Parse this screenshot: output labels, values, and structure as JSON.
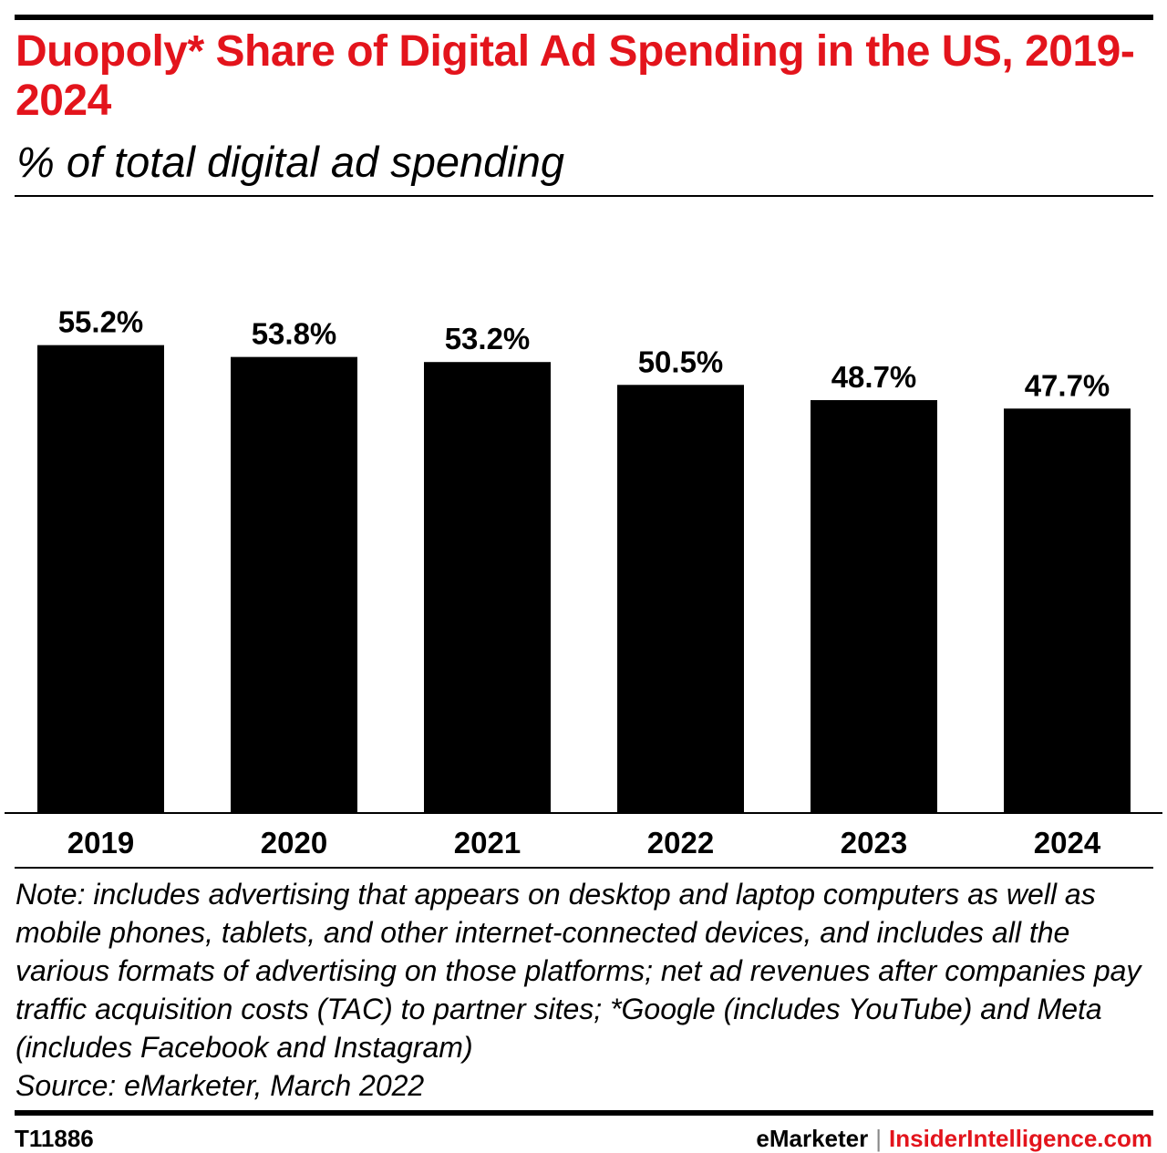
{
  "title": "Duopoly* Share of Digital Ad Spending in the US, 2019-2024",
  "subtitle": "% of total digital ad spending",
  "chart_data": {
    "type": "bar",
    "categories": [
      "2019",
      "2020",
      "2021",
      "2022",
      "2023",
      "2024"
    ],
    "values": [
      55.2,
      53.8,
      53.2,
      50.5,
      48.7,
      47.7
    ],
    "data_labels": [
      "55.2%",
      "53.8%",
      "53.2%",
      "50.5%",
      "48.7%",
      "47.7%"
    ],
    "ylim": [
      0,
      71
    ],
    "grid": false,
    "bar_color": "#000000"
  },
  "note": "Note: includes advertising that appears on desktop and laptop computers as well as mobile phones, tablets, and other internet-connected devices, and includes all the various formats of advertising on those platforms; net ad revenues after companies pay traffic acquisition costs (TAC) to partner sites; *Google (includes YouTube) and Meta (includes Facebook and Instagram)",
  "source": "Source: eMarketer, March 2022",
  "footer": {
    "id": "T11886",
    "brand1": "eMarketer",
    "separator": "|",
    "brand2": "InsiderIntelligence.com"
  },
  "colors": {
    "accent": "#e3141c"
  }
}
